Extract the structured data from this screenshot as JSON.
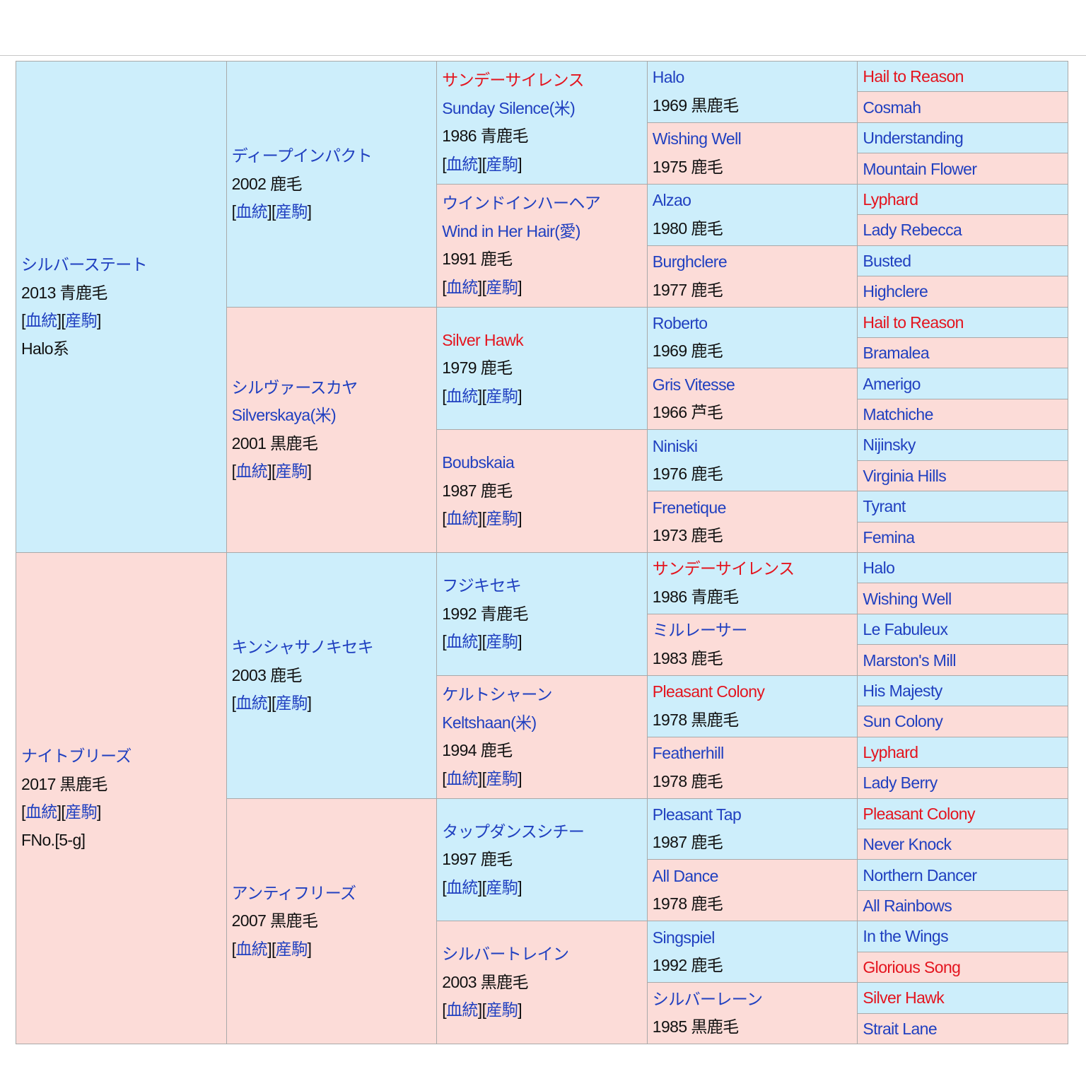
{
  "pedigree": {
    "generations": [
      [
        {
          "names": [
            {
              "text": "シルバーステート",
              "style": "link"
            }
          ],
          "info": "2013 青鹿毛",
          "links": [
            "[",
            "血統",
            "][",
            "産駒",
            "]"
          ],
          "note": "Halo系"
        },
        {
          "names": [
            {
              "text": "ナイトブリーズ",
              "style": "link"
            }
          ],
          "info": "2017 黒鹿毛",
          "links": [
            "[",
            "血統",
            "][",
            "産駒",
            "]"
          ],
          "note": "FNo.[5-g]"
        }
      ],
      [
        {
          "names": [
            {
              "text": "ディープインパクト",
              "style": "link"
            }
          ],
          "info": "2002 鹿毛",
          "links": [
            "[",
            "血統",
            "][",
            "産駒",
            "]"
          ]
        },
        {
          "names": [
            {
              "text": "シルヴァースカヤ",
              "style": "link"
            },
            {
              "text": "Silverskaya(米)",
              "style": "link"
            }
          ],
          "info": "2001 黒鹿毛",
          "links": [
            "[",
            "血統",
            "][",
            "産駒",
            "]"
          ]
        },
        {
          "names": [
            {
              "text": "キンシャサノキセキ",
              "style": "link"
            }
          ],
          "info": "2003 鹿毛",
          "links": [
            "[",
            "血統",
            "][",
            "産駒",
            "]"
          ]
        },
        {
          "names": [
            {
              "text": "アンティフリーズ",
              "style": "link"
            }
          ],
          "info": "2007 黒鹿毛",
          "links": [
            "[",
            "血統",
            "][",
            "産駒",
            "]"
          ]
        }
      ],
      [
        {
          "names": [
            {
              "text": "サンデーサイレンス",
              "style": "red"
            },
            {
              "text": "Sunday Silence(米)",
              "style": "link"
            }
          ],
          "info": "1986 青鹿毛",
          "links": [
            "[",
            "血統",
            "][",
            "産駒",
            "]"
          ]
        },
        {
          "names": [
            {
              "text": "ウインドインハーヘア",
              "style": "link"
            },
            {
              "text": "Wind in Her Hair(愛)",
              "style": "link"
            }
          ],
          "info": "1991 鹿毛",
          "links": [
            "[",
            "血統",
            "][",
            "産駒",
            "]"
          ]
        },
        {
          "names": [
            {
              "text": "Silver Hawk",
              "style": "red"
            }
          ],
          "info": "1979 鹿毛",
          "links": [
            "[",
            "血統",
            "][",
            "産駒",
            "]"
          ]
        },
        {
          "names": [
            {
              "text": "Boubskaia",
              "style": "link"
            }
          ],
          "info": "1987 鹿毛",
          "links": [
            "[",
            "血統",
            "][",
            "産駒",
            "]"
          ]
        },
        {
          "names": [
            {
              "text": "フジキセキ",
              "style": "link"
            }
          ],
          "info": "1992 青鹿毛",
          "links": [
            "[",
            "血統",
            "][",
            "産駒",
            "]"
          ]
        },
        {
          "names": [
            {
              "text": "ケルトシャーン",
              "style": "link"
            },
            {
              "text": "Keltshaan(米)",
              "style": "link"
            }
          ],
          "info": "1994 鹿毛",
          "links": [
            "[",
            "血統",
            "][",
            "産駒",
            "]"
          ]
        },
        {
          "names": [
            {
              "text": "タップダンスシチー",
              "style": "link"
            }
          ],
          "info": "1997 鹿毛",
          "links": [
            "[",
            "血統",
            "][",
            "産駒",
            "]"
          ]
        },
        {
          "names": [
            {
              "text": "シルバートレイン",
              "style": "link"
            }
          ],
          "info": "2003 黒鹿毛",
          "links": [
            "[",
            "血統",
            "][",
            "産駒",
            "]"
          ]
        }
      ],
      [
        {
          "names": [
            {
              "text": "Halo",
              "style": "link"
            }
          ],
          "info": "1969 黒鹿毛"
        },
        {
          "names": [
            {
              "text": "Wishing Well",
              "style": "link"
            }
          ],
          "info": "1975 鹿毛"
        },
        {
          "names": [
            {
              "text": "Alzao",
              "style": "link"
            }
          ],
          "info": "1980 鹿毛"
        },
        {
          "names": [
            {
              "text": "Burghclere",
              "style": "link"
            }
          ],
          "info": "1977 鹿毛"
        },
        {
          "names": [
            {
              "text": "Roberto",
              "style": "link"
            }
          ],
          "info": "1969 鹿毛"
        },
        {
          "names": [
            {
              "text": "Gris Vitesse",
              "style": "link"
            }
          ],
          "info": "1966 芦毛"
        },
        {
          "names": [
            {
              "text": "Niniski",
              "style": "link"
            }
          ],
          "info": "1976 鹿毛"
        },
        {
          "names": [
            {
              "text": "Frenetique",
              "style": "link"
            }
          ],
          "info": "1973 鹿毛"
        },
        {
          "names": [
            {
              "text": "サンデーサイレンス",
              "style": "red"
            }
          ],
          "info": "1986 青鹿毛"
        },
        {
          "names": [
            {
              "text": "ミルレーサー",
              "style": "link"
            }
          ],
          "info": "1983 鹿毛"
        },
        {
          "names": [
            {
              "text": "Pleasant Colony",
              "style": "red"
            }
          ],
          "info": "1978 黒鹿毛"
        },
        {
          "names": [
            {
              "text": "Featherhill",
              "style": "link"
            }
          ],
          "info": "1978 鹿毛"
        },
        {
          "names": [
            {
              "text": "Pleasant Tap",
              "style": "link"
            }
          ],
          "info": "1987 鹿毛"
        },
        {
          "names": [
            {
              "text": "All Dance",
              "style": "link"
            }
          ],
          "info": "1978 鹿毛"
        },
        {
          "names": [
            {
              "text": "Singspiel",
              "style": "link"
            }
          ],
          "info": "1992 鹿毛"
        },
        {
          "names": [
            {
              "text": "シルバーレーン",
              "style": "link"
            }
          ],
          "info": "1985 黒鹿毛"
        }
      ],
      [
        {
          "names": [
            {
              "text": "Hail to Reason",
              "style": "red"
            }
          ]
        },
        {
          "names": [
            {
              "text": "Cosmah",
              "style": "link"
            }
          ]
        },
        {
          "names": [
            {
              "text": "Understanding",
              "style": "link"
            }
          ]
        },
        {
          "names": [
            {
              "text": "Mountain Flower",
              "style": "link"
            }
          ]
        },
        {
          "names": [
            {
              "text": "Lyphard",
              "style": "red"
            }
          ]
        },
        {
          "names": [
            {
              "text": "Lady Rebecca",
              "style": "link"
            }
          ]
        },
        {
          "names": [
            {
              "text": "Busted",
              "style": "link"
            }
          ]
        },
        {
          "names": [
            {
              "text": "Highclere",
              "style": "link"
            }
          ]
        },
        {
          "names": [
            {
              "text": "Hail to Reason",
              "style": "red"
            }
          ]
        },
        {
          "names": [
            {
              "text": "Bramalea",
              "style": "link"
            }
          ]
        },
        {
          "names": [
            {
              "text": "Amerigo",
              "style": "link"
            }
          ]
        },
        {
          "names": [
            {
              "text": "Matchiche",
              "style": "link"
            }
          ]
        },
        {
          "names": [
            {
              "text": "Nijinsky",
              "style": "link"
            }
          ]
        },
        {
          "names": [
            {
              "text": "Virginia Hills",
              "style": "link"
            }
          ]
        },
        {
          "names": [
            {
              "text": "Tyrant",
              "style": "link"
            }
          ]
        },
        {
          "names": [
            {
              "text": "Femina",
              "style": "link"
            }
          ]
        },
        {
          "names": [
            {
              "text": "Halo",
              "style": "link"
            }
          ]
        },
        {
          "names": [
            {
              "text": "Wishing Well",
              "style": "link"
            }
          ]
        },
        {
          "names": [
            {
              "text": "Le Fabuleux",
              "style": "link"
            }
          ]
        },
        {
          "names": [
            {
              "text": "Marston's Mill",
              "style": "link"
            }
          ]
        },
        {
          "names": [
            {
              "text": "His Majesty",
              "style": "link"
            }
          ]
        },
        {
          "names": [
            {
              "text": "Sun Colony",
              "style": "link"
            }
          ]
        },
        {
          "names": [
            {
              "text": "Lyphard",
              "style": "red"
            }
          ]
        },
        {
          "names": [
            {
              "text": "Lady Berry",
              "style": "link"
            }
          ]
        },
        {
          "names": [
            {
              "text": "Pleasant Colony",
              "style": "red"
            }
          ]
        },
        {
          "names": [
            {
              "text": "Never Knock",
              "style": "link"
            }
          ]
        },
        {
          "names": [
            {
              "text": "Northern Dancer",
              "style": "link"
            }
          ]
        },
        {
          "names": [
            {
              "text": "All Rainbows",
              "style": "link"
            }
          ]
        },
        {
          "names": [
            {
              "text": "In the Wings",
              "style": "link"
            }
          ]
        },
        {
          "names": [
            {
              "text": "Glorious Song",
              "style": "red"
            }
          ]
        },
        {
          "names": [
            {
              "text": "Silver Hawk",
              "style": "red"
            }
          ]
        },
        {
          "names": [
            {
              "text": "Strait Lane",
              "style": "link"
            }
          ]
        }
      ]
    ]
  }
}
